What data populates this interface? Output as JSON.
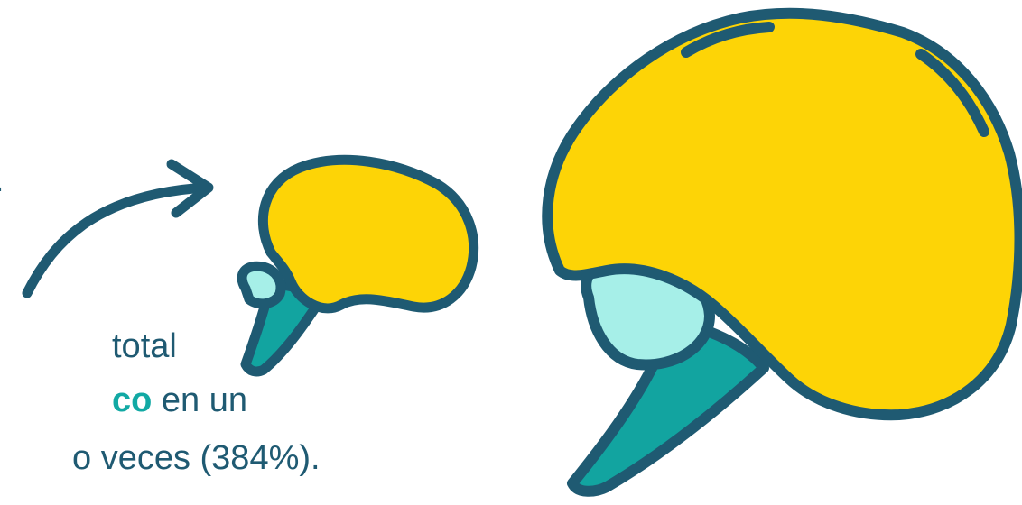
{
  "text": {
    "dot": ".",
    "line1": "total",
    "line2_accent": "co",
    "line2_rest": " en un",
    "line3": "o veces (384%)."
  },
  "colors": {
    "outline": "#1f5a72",
    "brain_fill": "#fdd406",
    "stem_fill": "#12a4a0",
    "cerebellum_fill": "#a6efe8",
    "text": "#1f5a72",
    "accent": "#12a9a4",
    "background": "#ffffff"
  },
  "icons": {
    "arrow": "curved-arrow-icon",
    "small_brain": "small-brain-illustration",
    "large_brain": "large-brain-illustration"
  }
}
